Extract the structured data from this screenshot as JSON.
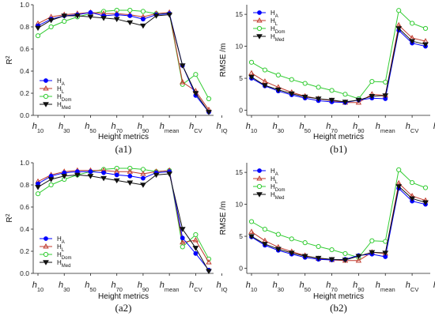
{
  "chart_data": [
    {
      "type": "line",
      "panel_label": "(a1)",
      "xlabel": "Height metrics",
      "ylabel": "R",
      "ylabel_sup": "2",
      "ylim": [
        0,
        1
      ],
      "yticks": [
        "0.0",
        "0.2",
        "0.4",
        "0.6",
        "0.8",
        "1.0"
      ],
      "x_tick_labels": [
        [
          "h",
          "10"
        ],
        [
          "h",
          "30"
        ],
        [
          "h",
          "50"
        ],
        [
          "h",
          "70"
        ],
        [
          "h",
          "90"
        ],
        [
          "h",
          "mean"
        ],
        [
          "h",
          "CV"
        ],
        [
          "h",
          "IQ"
        ]
      ],
      "grid": false,
      "legend_position": "bottom-left",
      "series": [
        {
          "name": "H",
          "sub": "A",
          "color": "#0000ff",
          "marker": "circle-filled",
          "values": [
            0.81,
            0.87,
            0.9,
            0.91,
            0.93,
            0.9,
            0.91,
            0.9,
            0.87,
            0.91,
            0.92,
            0.45,
            0.18,
            0.03
          ]
        },
        {
          "name": "H",
          "sub": "L",
          "color": "#c0392b",
          "marker": "triangle-up",
          "values": [
            0.83,
            0.89,
            0.91,
            0.92,
            0.93,
            0.92,
            0.92,
            0.91,
            0.89,
            0.92,
            0.93,
            0.3,
            0.22,
            0.05
          ]
        },
        {
          "name": "H",
          "sub": "Dom",
          "color": "#33cc33",
          "marker": "circle-open",
          "values": [
            0.72,
            0.8,
            0.85,
            0.89,
            0.92,
            0.94,
            0.95,
            0.95,
            0.94,
            0.92,
            0.92,
            0.28,
            0.37,
            0.15
          ]
        },
        {
          "name": "H",
          "sub": "Med",
          "color": "#111111",
          "marker": "triangle-down",
          "values": [
            0.79,
            0.86,
            0.9,
            0.9,
            0.89,
            0.88,
            0.87,
            0.84,
            0.81,
            0.9,
            0.91,
            0.45,
            0.2,
            0.03
          ]
        }
      ]
    },
    {
      "type": "line",
      "panel_label": "(b1)",
      "xlabel": "Height metrics",
      "ylabel": "RMSE /m",
      "ylim": [
        -0.8,
        16.5
      ],
      "yticks": [
        "0",
        "5",
        "10",
        "15"
      ],
      "x_tick_labels": [
        [
          "h",
          "10"
        ],
        [
          "h",
          "30"
        ],
        [
          "h",
          "50"
        ],
        [
          "h",
          "70"
        ],
        [
          "h",
          "90"
        ],
        [
          "h",
          "mean"
        ],
        [
          "h",
          "CV"
        ],
        [
          "h",
          "IQ"
        ]
      ],
      "grid": false,
      "legend_position": "top-left",
      "series": [
        {
          "name": "H",
          "sub": "A",
          "color": "#0000ff",
          "marker": "circle-filled",
          "values": [
            5.0,
            3.8,
            3.0,
            2.4,
            1.9,
            1.5,
            1.3,
            1.2,
            1.6,
            1.9,
            1.8,
            12.5,
            10.5,
            10.0
          ]
        },
        {
          "name": "H",
          "sub": "L",
          "color": "#c0392b",
          "marker": "triangle-up",
          "values": [
            5.8,
            4.5,
            3.6,
            2.8,
            2.2,
            1.8,
            1.5,
            1.2,
            1.2,
            2.5,
            2.3,
            13.3,
            11.3,
            10.8
          ]
        },
        {
          "name": "H",
          "sub": "Dom",
          "color": "#33cc33",
          "marker": "circle-open",
          "values": [
            7.5,
            6.3,
            5.5,
            4.8,
            4.2,
            3.6,
            3.1,
            2.5,
            1.8,
            4.5,
            4.4,
            15.6,
            13.6,
            12.8
          ]
        },
        {
          "name": "H",
          "sub": "Med",
          "color": "#111111",
          "marker": "triangle-down",
          "values": [
            5.2,
            3.9,
            3.2,
            2.6,
            2.1,
            1.8,
            1.6,
            1.3,
            1.6,
            2.2,
            2.3,
            12.8,
            10.8,
            10.3
          ]
        }
      ]
    },
    {
      "type": "line",
      "panel_label": "(a2)",
      "xlabel": "Height metrics",
      "ylabel": "R",
      "ylabel_sup": "2",
      "ylim": [
        0,
        1
      ],
      "yticks": [
        "0.0",
        "0.2",
        "0.4",
        "0.6",
        "0.8",
        "1.0"
      ],
      "x_tick_labels": [
        [
          "h",
          "10"
        ],
        [
          "h",
          "30"
        ],
        [
          "h",
          "50"
        ],
        [
          "h",
          "70"
        ],
        [
          "h",
          "90"
        ],
        [
          "h",
          "mean"
        ],
        [
          "h",
          "CV"
        ],
        [
          "h",
          "IQ"
        ]
      ],
      "grid": false,
      "legend_position": "bottom-left",
      "series": [
        {
          "name": "H",
          "sub": "A",
          "color": "#0000ff",
          "marker": "circle-filled",
          "values": [
            0.81,
            0.88,
            0.91,
            0.92,
            0.92,
            0.91,
            0.89,
            0.88,
            0.86,
            0.91,
            0.92,
            0.32,
            0.18,
            0.03
          ]
        },
        {
          "name": "H",
          "sub": "L",
          "color": "#c0392b",
          "marker": "triangle-up",
          "values": [
            0.83,
            0.89,
            0.92,
            0.93,
            0.93,
            0.93,
            0.92,
            0.92,
            0.9,
            0.92,
            0.93,
            0.28,
            0.3,
            0.1
          ]
        },
        {
          "name": "H",
          "sub": "Dom",
          "color": "#33cc33",
          "marker": "circle-open",
          "values": [
            0.72,
            0.8,
            0.85,
            0.89,
            0.92,
            0.94,
            0.95,
            0.95,
            0.94,
            0.92,
            0.93,
            0.24,
            0.35,
            0.13
          ]
        },
        {
          "name": "H",
          "sub": "Med",
          "color": "#111111",
          "marker": "triangle-down",
          "values": [
            0.78,
            0.85,
            0.88,
            0.89,
            0.88,
            0.86,
            0.84,
            0.82,
            0.8,
            0.89,
            0.9,
            0.4,
            0.23,
            0.02
          ]
        }
      ]
    },
    {
      "type": "line",
      "panel_label": "(b2)",
      "xlabel": "Height metrics",
      "ylabel": "RMSE /m",
      "ylim": [
        -0.8,
        16.5
      ],
      "yticks": [
        "0",
        "5",
        "10",
        "15"
      ],
      "x_tick_labels": [
        [
          "h",
          "10"
        ],
        [
          "h",
          "30"
        ],
        [
          "h",
          "50"
        ],
        [
          "h",
          "70"
        ],
        [
          "h",
          "90"
        ],
        [
          "h",
          "mean"
        ],
        [
          "h",
          "CV"
        ],
        [
          "h",
          "IQ"
        ]
      ],
      "grid": false,
      "legend_position": "top-left",
      "series": [
        {
          "name": "H",
          "sub": "A",
          "color": "#0000ff",
          "marker": "circle-filled",
          "values": [
            4.9,
            3.6,
            2.8,
            2.2,
            1.7,
            1.4,
            1.3,
            1.4,
            2.0,
            2.2,
            1.8,
            12.5,
            10.5,
            10.0
          ]
        },
        {
          "name": "H",
          "sub": "L",
          "color": "#c0392b",
          "marker": "triangle-up",
          "values": [
            5.7,
            4.3,
            3.3,
            2.6,
            2.0,
            1.5,
            1.3,
            1.2,
            1.2,
            2.5,
            2.3,
            13.3,
            11.3,
            10.6
          ]
        },
        {
          "name": "H",
          "sub": "Dom",
          "color": "#33cc33",
          "marker": "circle-open",
          "values": [
            7.3,
            6.1,
            5.3,
            4.6,
            4.0,
            3.4,
            2.9,
            2.3,
            1.7,
            4.3,
            4.2,
            15.4,
            13.4,
            12.6
          ]
        },
        {
          "name": "H",
          "sub": "Med",
          "color": "#111111",
          "marker": "triangle-down",
          "values": [
            5.0,
            3.8,
            3.0,
            2.4,
            1.9,
            1.6,
            1.4,
            1.3,
            1.9,
            2.5,
            2.4,
            12.8,
            10.9,
            10.3
          ]
        }
      ]
    }
  ]
}
